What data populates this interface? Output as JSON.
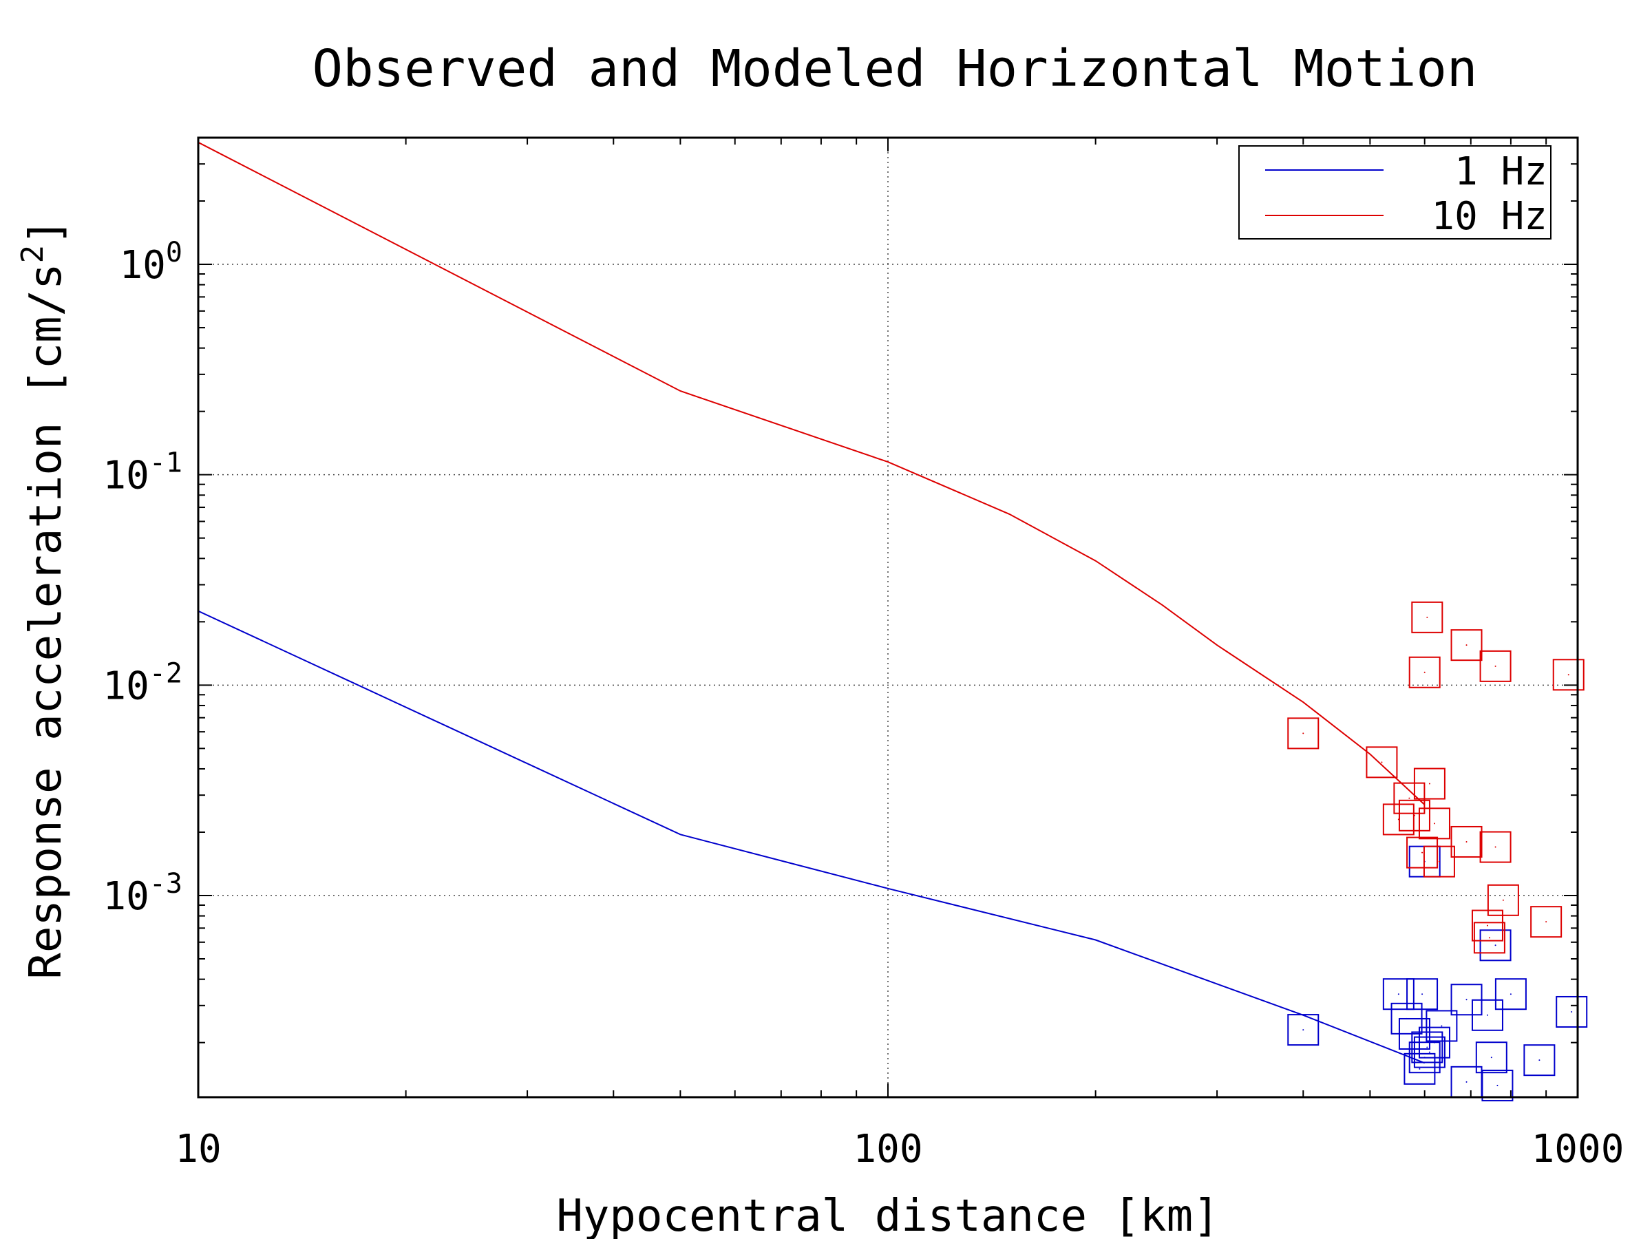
{
  "chart_data": {
    "type": "scatter",
    "title": "Observed and Modeled Horizontal Motion",
    "xlabel": "Hypocentral distance [km]",
    "ylabel": "Response acceleration [cm/s",
    "ylabel_sup": "2",
    "ylabel_end": "]",
    "x_scale": "log",
    "y_scale": "log",
    "xlim": [
      10,
      1000
    ],
    "ylim": [
      0.00011,
      4.0
    ],
    "grid": true,
    "legend_position": "top-right",
    "x_ticks": [
      {
        "value": 10,
        "label": "10"
      },
      {
        "value": 100,
        "label": "100"
      },
      {
        "value": 1000,
        "label": "1000"
      }
    ],
    "y_ticks": [
      {
        "value": 1,
        "base": "10",
        "exp": "0"
      },
      {
        "value": 0.1,
        "base": "10",
        "exp": "-1"
      },
      {
        "value": 0.01,
        "base": "10",
        "exp": "-2"
      },
      {
        "value": 0.001,
        "base": "10",
        "exp": "-3"
      }
    ],
    "colors": {
      "1 Hz": "#0000cc",
      "10 Hz": "#dd0000"
    },
    "series": [
      {
        "name": "1 Hz",
        "color": "#0000cc",
        "model": [
          {
            "x": 10,
            "y": 0.0225
          },
          {
            "x": 50,
            "y": 0.00195
          },
          {
            "x": 100,
            "y": 0.00108
          },
          {
            "x": 200,
            "y": 0.000615
          },
          {
            "x": 400,
            "y": 0.00027
          },
          {
            "x": 600,
            "y": 0.00016
          }
        ],
        "observed": [
          {
            "x": 400,
            "y": 0.00023
          },
          {
            "x": 550,
            "y": 0.00034
          },
          {
            "x": 565,
            "y": 0.00026
          },
          {
            "x": 580,
            "y": 0.00022
          },
          {
            "x": 595,
            "y": 0.00034
          },
          {
            "x": 590,
            "y": 0.00015
          },
          {
            "x": 600,
            "y": 0.00017
          },
          {
            "x": 605,
            "y": 0.00019
          },
          {
            "x": 610,
            "y": 0.00018
          },
          {
            "x": 620,
            "y": 0.0002
          },
          {
            "x": 635,
            "y": 0.00024
          },
          {
            "x": 600,
            "y": 0.00145
          },
          {
            "x": 690,
            "y": 0.00032
          },
          {
            "x": 690,
            "y": 0.00013
          },
          {
            "x": 740,
            "y": 0.00027
          },
          {
            "x": 750,
            "y": 0.00017
          },
          {
            "x": 765,
            "y": 0.000125
          },
          {
            "x": 760,
            "y": 0.00058
          },
          {
            "x": 800,
            "y": 0.00034
          },
          {
            "x": 880,
            "y": 0.000165
          },
          {
            "x": 980,
            "y": 0.00028
          }
        ]
      },
      {
        "name": "10 Hz",
        "color": "#dd0000",
        "model": [
          {
            "x": 10,
            "y": 3.8
          },
          {
            "x": 50,
            "y": 0.25
          },
          {
            "x": 100,
            "y": 0.115
          },
          {
            "x": 150,
            "y": 0.065
          },
          {
            "x": 200,
            "y": 0.039
          },
          {
            "x": 250,
            "y": 0.024
          },
          {
            "x": 300,
            "y": 0.0155
          },
          {
            "x": 400,
            "y": 0.0083
          },
          {
            "x": 500,
            "y": 0.0047
          },
          {
            "x": 600,
            "y": 0.0027
          }
        ],
        "observed": [
          {
            "x": 400,
            "y": 0.0059
          },
          {
            "x": 520,
            "y": 0.0043
          },
          {
            "x": 550,
            "y": 0.0023
          },
          {
            "x": 570,
            "y": 0.0029
          },
          {
            "x": 580,
            "y": 0.0024
          },
          {
            "x": 600,
            "y": 0.0115
          },
          {
            "x": 605,
            "y": 0.021
          },
          {
            "x": 610,
            "y": 0.0034
          },
          {
            "x": 620,
            "y": 0.0022
          },
          {
            "x": 595,
            "y": 0.0016
          },
          {
            "x": 630,
            "y": 0.00145
          },
          {
            "x": 690,
            "y": 0.0155
          },
          {
            "x": 690,
            "y": 0.0018
          },
          {
            "x": 760,
            "y": 0.0123
          },
          {
            "x": 760,
            "y": 0.0017
          },
          {
            "x": 740,
            "y": 0.00072
          },
          {
            "x": 745,
            "y": 0.00063
          },
          {
            "x": 780,
            "y": 0.00095
          },
          {
            "x": 900,
            "y": 0.00075
          },
          {
            "x": 970,
            "y": 0.0112
          }
        ]
      }
    ]
  }
}
